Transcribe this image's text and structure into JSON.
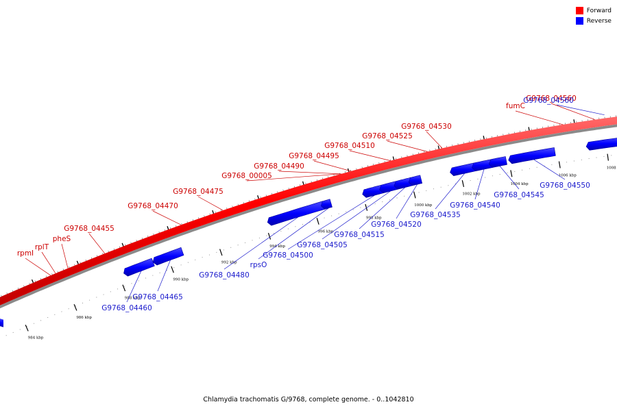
{
  "colors": {
    "forward": "#ff0000",
    "reverse": "#0000ff",
    "forward_label": "#cc0000",
    "reverse_label": "#1a1acc",
    "backbone_shadow": "#8a8a8a"
  },
  "legend": {
    "forward": "Forward",
    "reverse": "Reverse"
  },
  "caption": "Chlamydia trachomatis G/9768, complete genome. - 0..1042810",
  "kbp_ticks": [
    {
      "kbp": 984,
      "label": "984 kbp"
    },
    {
      "kbp": 986,
      "label": "986 kbp"
    },
    {
      "kbp": 988,
      "label": "988 kbp"
    },
    {
      "kbp": 990,
      "label": "990 kbp"
    },
    {
      "kbp": 992,
      "label": "992 kbp"
    },
    {
      "kbp": 994,
      "label": "994 kbp"
    },
    {
      "kbp": 996,
      "label": "996 kbp"
    },
    {
      "kbp": 998,
      "label": "998 kbp"
    },
    {
      "kbp": 1000,
      "label": "1000 kbp"
    },
    {
      "kbp": 1002,
      "label": "1002 kbp"
    },
    {
      "kbp": 1004,
      "label": "1004 kbp"
    },
    {
      "kbp": 1006,
      "label": "1006 kbp"
    },
    {
      "kbp": 1008,
      "label": "1008 kbp"
    }
  ],
  "forward_genes": [
    {
      "name": "rpmI",
      "pos_kbp": 985.6
    },
    {
      "name": "rplT",
      "pos_kbp": 985.8
    },
    {
      "name": "pheS",
      "pos_kbp": 986.3
    },
    {
      "name": "G9768_04455",
      "pos_kbp": 987.8
    },
    {
      "name": "G9768_04470",
      "pos_kbp": 990.9
    },
    {
      "name": "G9768_04475",
      "pos_kbp": 992.6
    },
    {
      "name": "G9768_00005",
      "pos_kbp": 997.4
    },
    {
      "name": "G9768_04490",
      "pos_kbp": 997.4
    },
    {
      "name": "G9768_04495",
      "pos_kbp": 997.8
    },
    {
      "name": "G9768_04510",
      "pos_kbp": 999.4
    },
    {
      "name": "G9768_04525",
      "pos_kbp": 1000.9
    },
    {
      "name": "G9768_04530",
      "pos_kbp": 1001.5
    },
    {
      "name": "fumC",
      "pos_kbp": 1006.4
    },
    {
      "name": "G9768_04560",
      "pos_kbp": 1007.7
    }
  ],
  "reverse_genes": [
    {
      "name": "G9768_04460",
      "start_kbp": 988.3,
      "end_kbp": 989.4
    },
    {
      "name": "G9768_04465",
      "start_kbp": 989.5,
      "end_kbp": 990.6
    },
    {
      "name": "G9768_04480",
      "start_kbp": 994.2,
      "end_kbp": 996.4
    },
    {
      "name": "rpsO",
      "start_kbp": 996.4,
      "end_kbp": 996.7
    },
    {
      "name": "G9768_04500",
      "start_kbp": 998.1,
      "end_kbp": 998.8
    },
    {
      "name": "G9768_04505",
      "start_kbp": 998.8,
      "end_kbp": 999.4
    },
    {
      "name": "G9768_04515",
      "start_kbp": 999.4,
      "end_kbp": 1000.0
    },
    {
      "name": "G9768_04520",
      "start_kbp": 1000.0,
      "end_kbp": 1000.4
    },
    {
      "name": "G9768_04535",
      "start_kbp": 1001.7,
      "end_kbp": 1002.6
    },
    {
      "name": "G9768_04540",
      "start_kbp": 1002.6,
      "end_kbp": 1003.3
    },
    {
      "name": "G9768_04545",
      "start_kbp": 1003.3,
      "end_kbp": 1003.9
    },
    {
      "name": "G9768_04550",
      "start_kbp": 1004.1,
      "end_kbp": 1005.9
    },
    {
      "name": "G9768_04560",
      "start_kbp": 1007.3,
      "end_kbp": 1008.9
    }
  ]
}
